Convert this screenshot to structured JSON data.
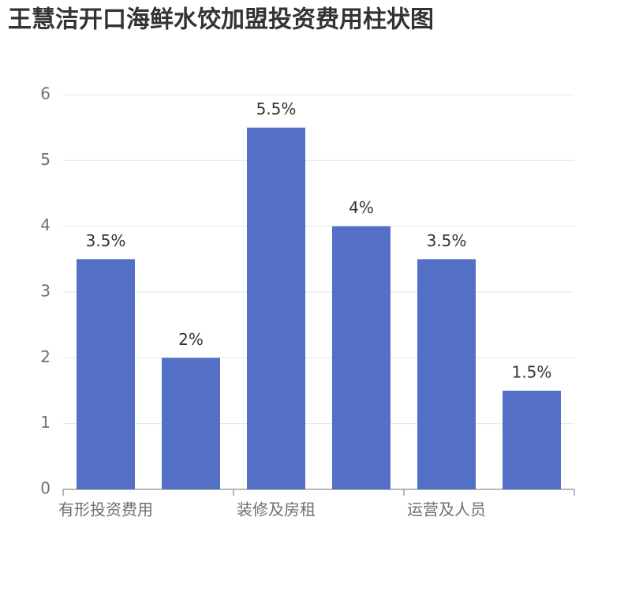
{
  "chart_data": {
    "type": "bar",
    "title": "王慧洁开口海鲜水饺加盟投资费用柱状图",
    "categories": [
      "有形投资费用",
      null,
      "装修及房租",
      null,
      "运营及人员",
      null
    ],
    "values": [
      3.5,
      2,
      5.5,
      4,
      3.5,
      1.5
    ],
    "value_labels": [
      "3.5%",
      "2%",
      "5.5%",
      "4%",
      "3.5%",
      "1.5%"
    ],
    "color": "#5470c6",
    "ylim": [
      0,
      6
    ],
    "yticks": [
      0,
      1,
      2,
      3,
      4,
      5,
      6
    ],
    "grid": true
  }
}
